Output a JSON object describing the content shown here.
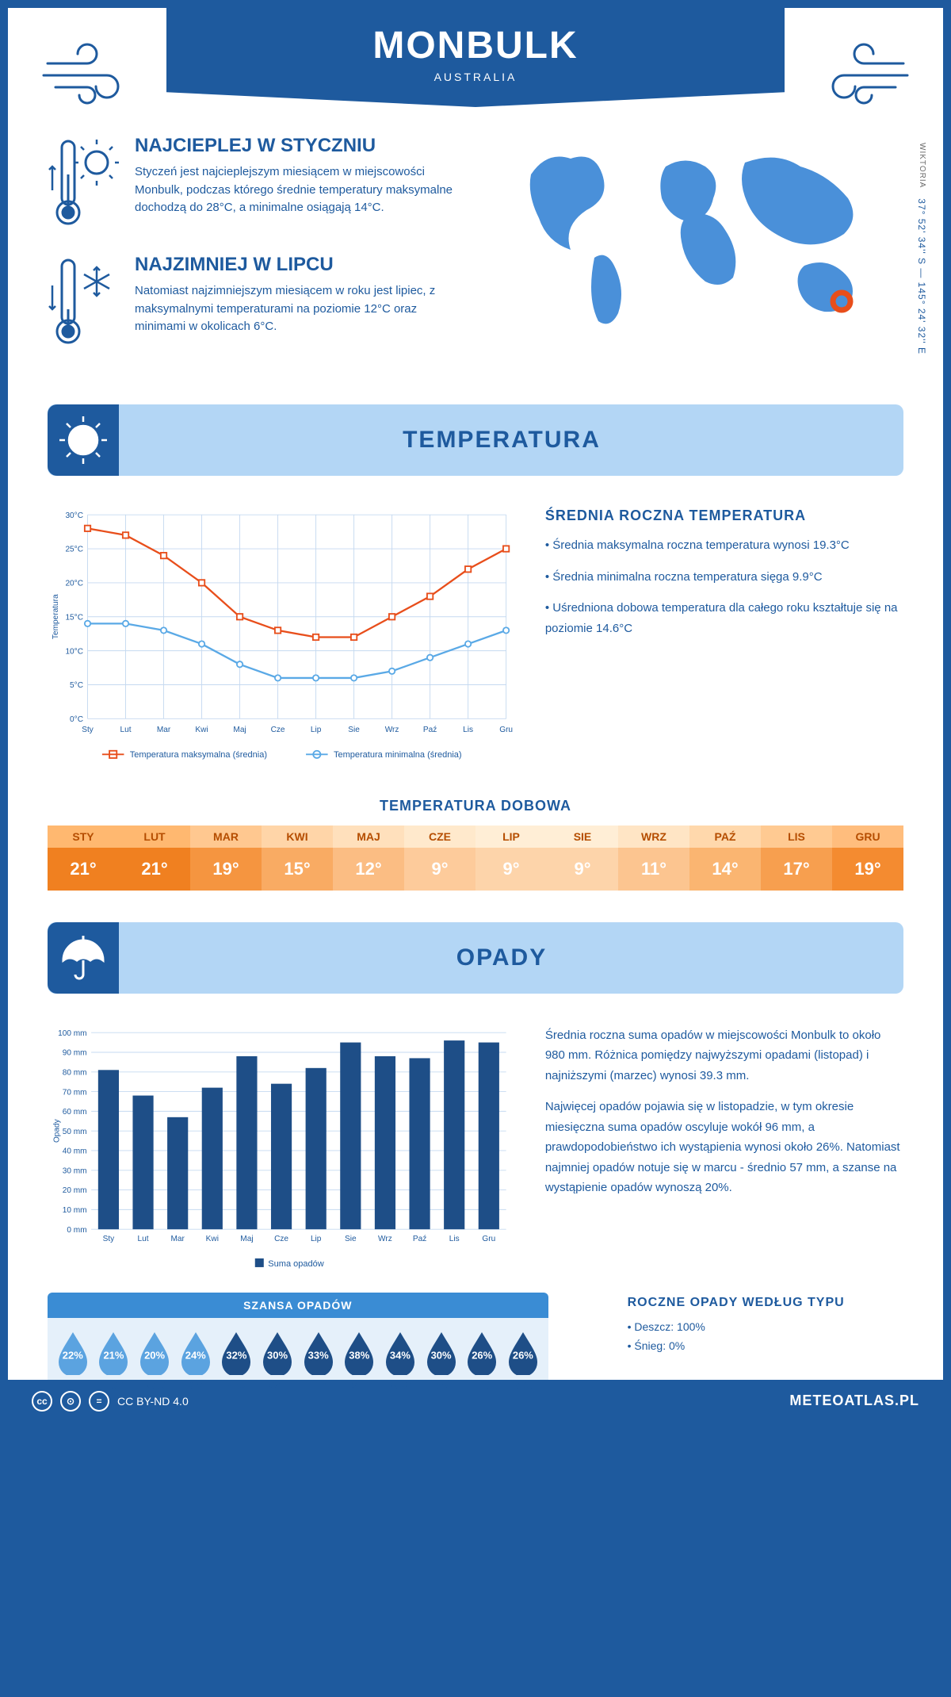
{
  "header": {
    "title": "MONBULK",
    "subtitle": "AUSTRALIA"
  },
  "coords": {
    "text": "37° 52' 34'' S — 145° 24' 32'' E",
    "region": "WIKTORIA"
  },
  "facts": {
    "warm": {
      "title": "NAJCIEPLEJ W STYCZNIU",
      "body": "Styczeń jest najcieplejszym miesiącem w miejscowości Monbulk, podczas którego średnie temperatury maksymalne dochodzą do 28°C, a minimalne osiągają 14°C."
    },
    "cold": {
      "title": "NAJZIMNIEJ W LIPCU",
      "body": "Natomiast najzimniejszym miesiącem w roku jest lipiec, z maksymalnymi temperaturami na poziomie 12°C oraz minimami w okolicach 6°C."
    }
  },
  "months": [
    "Sty",
    "Lut",
    "Mar",
    "Kwi",
    "Maj",
    "Cze",
    "Lip",
    "Sie",
    "Wrz",
    "Paź",
    "Lis",
    "Gru"
  ],
  "months_upper": [
    "STY",
    "LUT",
    "MAR",
    "KWI",
    "MAJ",
    "CZE",
    "LIP",
    "SIE",
    "WRZ",
    "PAŹ",
    "LIS",
    "GRU"
  ],
  "temperature": {
    "section_title": "TEMPERATURA",
    "chart": {
      "type": "line",
      "ylabel": "Temperatura",
      "ylim": [
        0,
        30
      ],
      "ytick_step": 5,
      "ytick_suffix": "°C",
      "grid_color": "#c5d9f0",
      "series": [
        {
          "name": "Temperatura maksymalna (średnia)",
          "color": "#e84e1b",
          "marker": "square",
          "values": [
            28,
            27,
            24,
            20,
            15,
            13,
            12,
            12,
            15,
            18,
            22,
            25
          ]
        },
        {
          "name": "Temperatura minimalna (średnia)",
          "color": "#5aa9e6",
          "marker": "circle",
          "values": [
            14,
            14,
            13,
            11,
            8,
            6,
            6,
            6,
            7,
            9,
            11,
            13
          ]
        }
      ],
      "legend_labels": [
        "Temperatura maksymalna (średnia)",
        "Temperatura minimalna (średnia)"
      ]
    },
    "annual": {
      "title": "ŚREDNIA ROCZNA TEMPERATURA",
      "bullets": [
        "Średnia maksymalna roczna temperatura wynosi 19.3°C",
        "Średnia minimalna roczna temperatura sięga 9.9°C",
        "Uśredniona dobowa temperatura dla całego roku kształtuje się na poziomie 14.6°C"
      ]
    },
    "daily": {
      "title": "TEMPERATURA DOBOWA",
      "values": [
        21,
        21,
        19,
        15,
        12,
        9,
        9,
        9,
        11,
        14,
        17,
        19
      ],
      "header_colors": [
        "#ffb870",
        "#ffb870",
        "#ffc890",
        "#ffd5a8",
        "#ffe0bc",
        "#ffe9cc",
        "#ffeed6",
        "#ffeed6",
        "#ffe5c5",
        "#ffd8ac",
        "#ffca92",
        "#ffbd7d"
      ],
      "value_colors": [
        "#f08020",
        "#f08020",
        "#f59540",
        "#f9ab63",
        "#fbbd83",
        "#fdcb9b",
        "#fdd4aa",
        "#fdd4aa",
        "#fcc590",
        "#fab571",
        "#f79f4f",
        "#f48b30"
      ]
    }
  },
  "rain": {
    "section_title": "OPADY",
    "chart": {
      "type": "bar",
      "ylabel": "Opady",
      "ylim": [
        0,
        100
      ],
      "ytick_step": 10,
      "ytick_suffix": " mm",
      "bar_color": "#1e4e87",
      "grid_color": "#c5d9f0",
      "legend": "Suma opadów",
      "values": [
        81,
        68,
        57,
        72,
        88,
        74,
        82,
        95,
        88,
        87,
        96,
        95
      ]
    },
    "summary": [
      "Średnia roczna suma opadów w miejscowości Monbulk to około 980 mm. Różnica pomiędzy najwyższymi opadami (listopad) i najniższymi (marzec) wynosi 39.3 mm.",
      "Najwięcej opadów pojawia się w listopadzie, w tym okresie miesięczna suma opadów oscyluje wokół 96 mm, a prawdopodobieństwo ich wystąpienia wynosi około 26%. Natomiast najmniej opadów notuje się w marcu - średnio 57 mm, a szanse na wystąpienie opadów wynoszą 20%."
    ],
    "chance": {
      "title": "SZANSA OPADÓW",
      "values": [
        22,
        21,
        20,
        24,
        32,
        30,
        33,
        38,
        34,
        30,
        26,
        26
      ],
      "light_color": "#5ba3e0",
      "dark_color": "#1e4e87",
      "threshold": 25
    },
    "by_type": {
      "title": "ROCZNE OPADY WEDŁUG TYPU",
      "items": [
        "Deszcz: 100%",
        "Śnieg: 0%"
      ]
    }
  },
  "footer": {
    "license": "CC BY-ND 4.0",
    "brand": "METEOATLAS.PL"
  }
}
